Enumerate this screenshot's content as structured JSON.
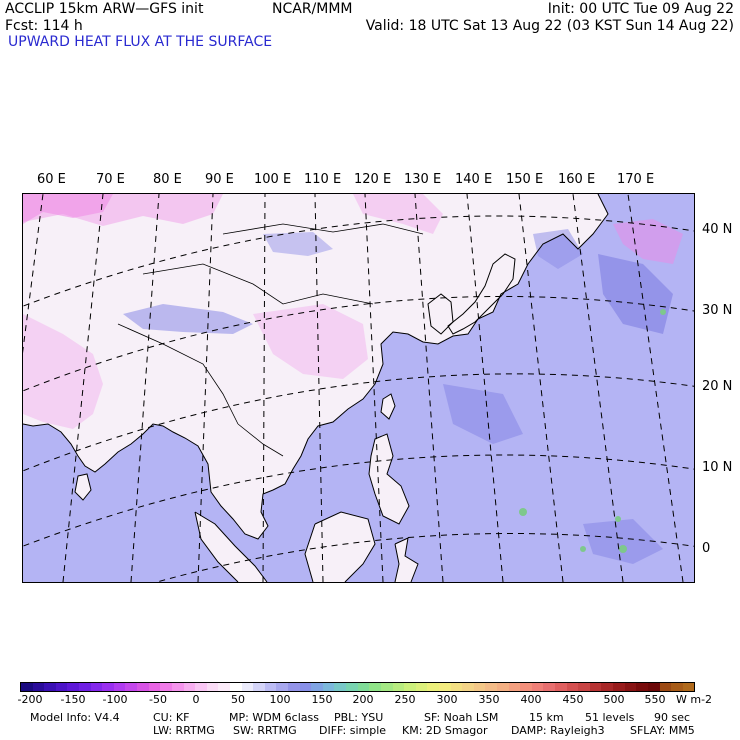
{
  "header": {
    "title": "ACCLIP 15km ARW—GFS init",
    "forecast": "Fcst:  114 h",
    "center": "NCAR/MMM",
    "init": "Init: 00 UTC Tue 09 Aug 22",
    "valid": "Valid: 18 UTC Sat 13 Aug 22 (03 KST Sun 14 Aug 22)",
    "field": "UPWARD HEAT FLUX AT THE SURFACE"
  },
  "map": {
    "longitude_labels": [
      "60 E",
      "70 E",
      "80 E",
      "90 E",
      "100 E",
      "110 E",
      "120 E",
      "130 E",
      "140 E",
      "150 E",
      "160 E",
      "170 E"
    ],
    "latitude_labels": [
      "40 N",
      "30 N",
      "20 N",
      "10 N",
      "0"
    ],
    "colors": {
      "ocean": "#b4b4f4",
      "ocean_deep": "#8a8ae6",
      "land": "#f7f0f8",
      "land_pink": "#f2b8ee",
      "land_magenta": "#ee88e6",
      "green": "#7ec88c",
      "coast": "#000000"
    }
  },
  "colorbar": {
    "tick_labels": [
      "-200",
      "-150",
      "-100",
      "-50",
      "0",
      "50",
      "100",
      "150",
      "200",
      "250",
      "300",
      "350",
      "400",
      "450",
      "500",
      "550"
    ],
    "units": "W m-2",
    "colors": [
      "#1a0a80",
      "#2a0c9a",
      "#3a10b4",
      "#4c14c8",
      "#5e18d8",
      "#7020e4",
      "#8428ec",
      "#9a30f0",
      "#b03cf0",
      "#c448ec",
      "#d854e6",
      "#e864e4",
      "#f07ce8",
      "#f494ec",
      "#f7aef0",
      "#f9c6f4",
      "#fadcf6",
      "#fcecfa",
      "#ffffff",
      "#ececfc",
      "#d4d4f8",
      "#bcbcf4",
      "#a8a8ee",
      "#9494e8",
      "#8890e8",
      "#80a4e4",
      "#7cb8dc",
      "#78c8c8",
      "#78d4b0",
      "#80dc98",
      "#90e488",
      "#a4e884",
      "#b8ec80",
      "#ccf07c",
      "#dcf07c",
      "#ecf07c",
      "#f4ec80",
      "#f4e084",
      "#f4d488",
      "#f4c888",
      "#f4bc88",
      "#f4b084",
      "#f4a080",
      "#f4907c",
      "#f08078",
      "#e87070",
      "#e06060",
      "#d45050",
      "#c84444",
      "#b83434",
      "#a82828",
      "#981c1c",
      "#881414",
      "#780c0c",
      "#6c0808",
      "#9c4a14",
      "#a85c18",
      "#b06a1c"
    ]
  },
  "model_info": {
    "line1": [
      "Model Info: V4.4",
      "CU: KF",
      "MP: WDM 6class",
      "PBL: YSU",
      "SF: Noah LSM",
      "15 km",
      "51 levels",
      "90 sec"
    ],
    "line2": [
      "LW: RRTMG",
      "SW: RRTMG",
      "DIFF: simple",
      "KM: 2D Smagor",
      "DAMP: Rayleigh3",
      "SFLAY: MM5"
    ]
  }
}
